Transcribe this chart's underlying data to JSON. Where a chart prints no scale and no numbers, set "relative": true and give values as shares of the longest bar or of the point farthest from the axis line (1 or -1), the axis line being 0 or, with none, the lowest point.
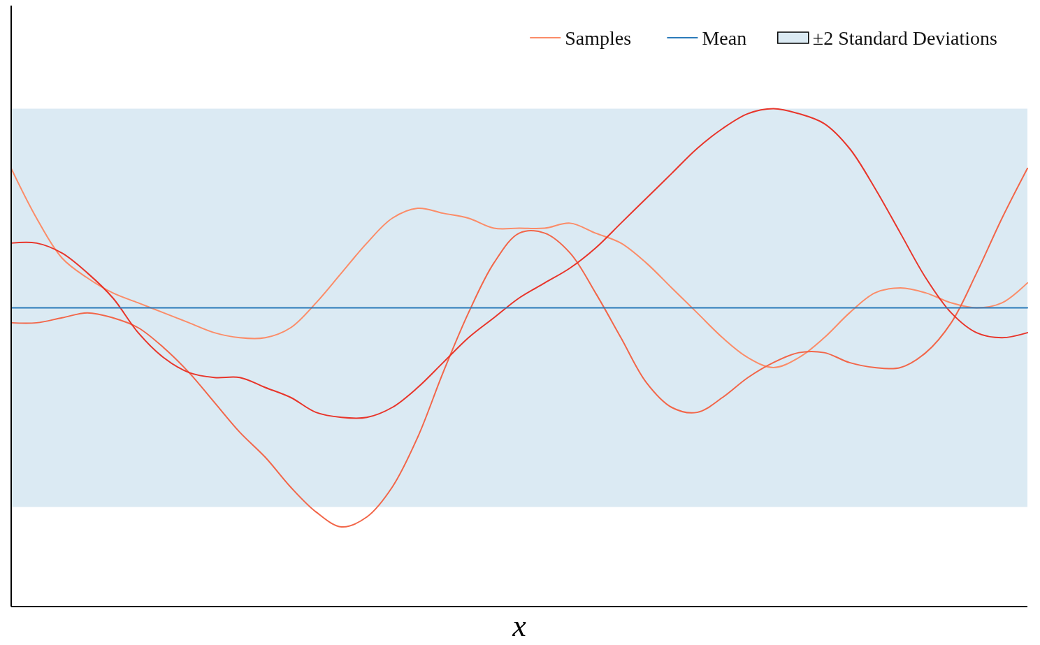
{
  "chart_data": {
    "type": "line",
    "relative": true,
    "xlabel": "x",
    "legend": "top right",
    "categories": [
      null,
      null,
      null,
      null,
      null,
      null,
      null,
      null,
      null,
      null,
      null,
      null,
      null,
      null,
      null,
      null,
      null,
      null,
      null,
      null,
      null,
      null,
      null,
      null,
      null,
      null,
      null,
      null,
      null,
      null,
      null,
      null,
      null,
      null,
      null,
      null,
      null,
      null,
      null,
      null,
      null
    ],
    "bands": [
      {
        "axis": "y",
        "from": 0.2,
        "to": 1,
        "label": "±2 Standard Deviations",
        "color": "#dbeaf3"
      }
    ],
    "series": [
      {
        "name": "Samples",
        "color": "#fb8c68",
        "values": [
          0.88,
          0.78,
          0.7,
          0.66,
          0.63,
          0.61,
          0.59,
          0.57,
          0.55,
          0.54,
          0.54,
          0.56,
          0.61,
          0.67,
          0.73,
          0.78,
          0.8,
          0.79,
          0.78,
          0.76,
          0.76,
          0.76,
          0.77,
          0.75,
          0.73,
          0.69,
          0.64,
          0.59,
          0.54,
          0.5,
          0.48,
          0.5,
          0.54,
          0.59,
          0.63,
          0.64,
          0.63,
          0.61,
          0.6,
          0.61,
          0.65
        ]
      },
      {
        "color": "#f26649",
        "values": [
          0.57,
          0.57,
          0.58,
          0.59,
          0.58,
          0.56,
          0.52,
          0.47,
          0.41,
          0.35,
          0.3,
          0.24,
          0.19,
          0.16,
          0.18,
          0.24,
          0.34,
          0.47,
          0.59,
          0.69,
          0.75,
          0.75,
          0.71,
          0.63,
          0.54,
          0.45,
          0.4,
          0.39,
          0.42,
          0.46,
          0.49,
          0.51,
          0.51,
          0.49,
          0.48,
          0.48,
          0.51,
          0.57,
          0.67,
          0.78,
          0.88
        ]
      },
      {
        "color": "#e8352a",
        "values": [
          0.73,
          0.73,
          0.71,
          0.67,
          0.62,
          0.55,
          0.5,
          0.47,
          0.46,
          0.46,
          0.44,
          0.42,
          0.39,
          0.38,
          0.38,
          0.4,
          0.44,
          0.49,
          0.54,
          0.58,
          0.62,
          0.65,
          0.68,
          0.72,
          0.77,
          0.82,
          0.87,
          0.92,
          0.96,
          0.99,
          1.0,
          0.99,
          0.97,
          0.92,
          0.84,
          0.75,
          0.66,
          0.59,
          0.55,
          0.54,
          0.55
        ]
      },
      {
        "name": "Mean",
        "color": "#2b7bba",
        "values": [
          0.6,
          0.6,
          0.6,
          0.6,
          0.6,
          0.6,
          0.6,
          0.6,
          0.6,
          0.6,
          0.6,
          0.6,
          0.6,
          0.6,
          0.6,
          0.6,
          0.6,
          0.6,
          0.6,
          0.6,
          0.6,
          0.6,
          0.6,
          0.6,
          0.6,
          0.6,
          0.6,
          0.6,
          0.6,
          0.6,
          0.6,
          0.6,
          0.6,
          0.6,
          0.6,
          0.6,
          0.6,
          0.6,
          0.6,
          0.6,
          0.6
        ]
      }
    ]
  }
}
